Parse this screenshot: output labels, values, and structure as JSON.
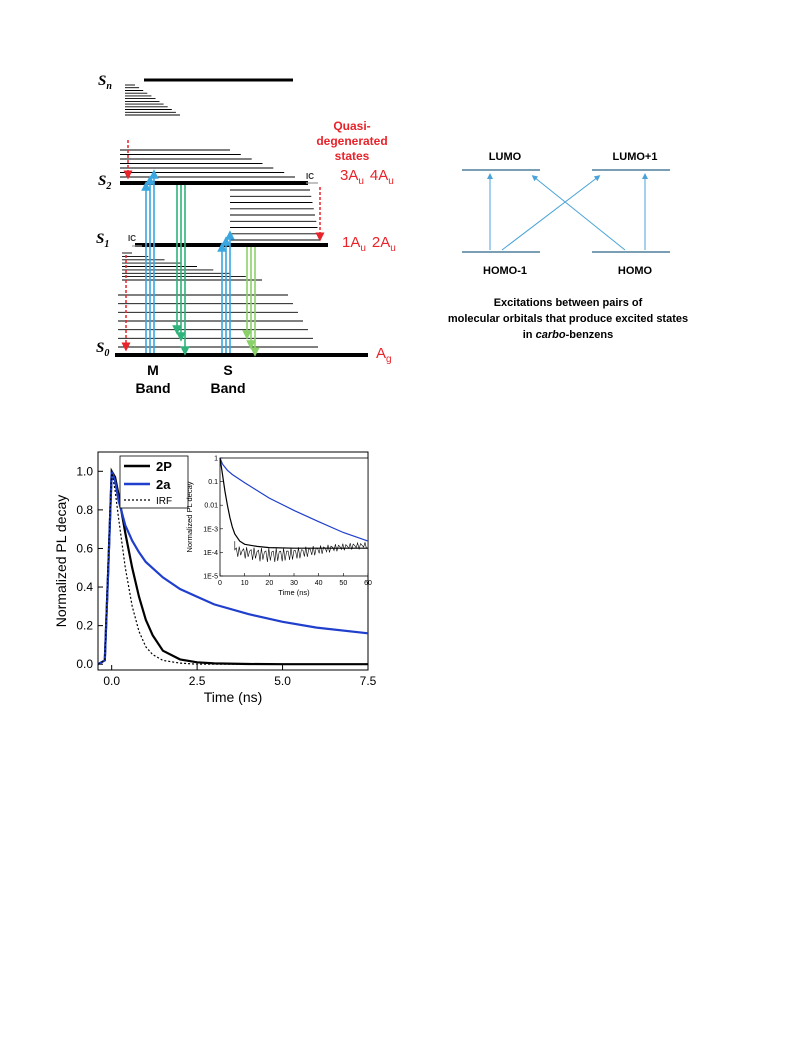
{
  "jablonski": {
    "levels": {
      "sn": "S",
      "sn_sub": "n",
      "s2": "S",
      "s2_sub": "2",
      "s1": "S",
      "s1_sub": "1",
      "s0": "S",
      "s0_sub": "0"
    },
    "quasi_label": [
      "Quasi-",
      "degenerated",
      "states"
    ],
    "s2_states": {
      "a": "3A",
      "a_sub": "u",
      "b": "4A",
      "b_sub": "u"
    },
    "s1_states": {
      "a": "1A",
      "a_sub": "u",
      "b": "2A",
      "b_sub": "u"
    },
    "s0_state": {
      "a": "A",
      "a_sub": "g"
    },
    "ic_label": "IC",
    "bands": {
      "m_top": "M",
      "m_bottom": "Band",
      "s_top": "S",
      "s_bottom": "Band"
    },
    "colors": {
      "red": "#e8232a",
      "blue": "#3aa7e0",
      "green": "#2fb37a",
      "lightgreen": "#8ad16a"
    }
  },
  "orbitals": {
    "lumo": "LUMO",
    "lumo1": "LUMO+1",
    "homo1": "HOMO-1",
    "homo": "HOMO",
    "caption_line1": "Excitations between pairs of",
    "caption_line2": "molecular orbitals that produce excited states",
    "caption_line3_pre": "in ",
    "caption_line3_italic": "carbo",
    "caption_line3_post": "-benzens",
    "colors": {
      "level": "#4f7f9a",
      "arrow": "#4aa3d8"
    }
  },
  "chart_data": [
    {
      "type": "line",
      "xlabel": "Time (ns)",
      "ylabel": "Normalized PL decay",
      "xlim": [
        -0.4,
        7.5
      ],
      "ylim": [
        -0.03,
        1.1
      ],
      "xticks": [
        "0.0",
        "2.5",
        "5.0",
        "7.5"
      ],
      "yticks": [
        "0.0",
        "0.2",
        "0.4",
        "0.6",
        "0.8",
        "1.0"
      ],
      "legend_position": "top-left",
      "series": [
        {
          "name": "2P",
          "color": "#000000",
          "x": [
            -0.4,
            -0.2,
            -0.1,
            0.0,
            0.1,
            0.2,
            0.4,
            0.6,
            0.8,
            1.0,
            1.2,
            1.5,
            2.0,
            2.5,
            3.0,
            4.0,
            5.0,
            7.5
          ],
          "y": [
            0.0,
            0.02,
            0.5,
            1.0,
            0.97,
            0.88,
            0.68,
            0.5,
            0.35,
            0.23,
            0.15,
            0.07,
            0.025,
            0.01,
            0.004,
            0.001,
            0.0,
            0.0
          ]
        },
        {
          "name": "2a",
          "color": "#1f3fcc",
          "x": [
            -0.4,
            -0.2,
            -0.1,
            0.0,
            0.1,
            0.2,
            0.4,
            0.6,
            0.8,
            1.0,
            1.5,
            2.0,
            2.5,
            3.0,
            4.0,
            5.0,
            6.0,
            7.5
          ],
          "y": [
            0.0,
            0.02,
            0.5,
            1.0,
            0.95,
            0.85,
            0.72,
            0.64,
            0.58,
            0.53,
            0.45,
            0.39,
            0.35,
            0.31,
            0.26,
            0.22,
            0.19,
            0.16
          ]
        },
        {
          "name": "IRF",
          "color": "#000000",
          "dashed": true,
          "x": [
            -0.4,
            -0.2,
            -0.1,
            0.0,
            0.1,
            0.2,
            0.4,
            0.6,
            0.8,
            1.0,
            1.2,
            1.5,
            2.0,
            2.5,
            7.5
          ],
          "y": [
            0.0,
            0.02,
            0.55,
            1.0,
            0.9,
            0.76,
            0.5,
            0.3,
            0.17,
            0.09,
            0.05,
            0.02,
            0.006,
            0.0,
            0.0
          ]
        }
      ]
    },
    {
      "type": "line",
      "xlabel": "Time (ns)",
      "ylabel": "Normalized PL decay",
      "xlim": [
        0,
        60
      ],
      "ylim_log": [
        1e-05,
        1
      ],
      "y_scale": "log",
      "xticks": [
        "0",
        "10",
        "20",
        "30",
        "40",
        "50",
        "60"
      ],
      "yticks": [
        "1",
        "0.1",
        "0.01",
        "1E-3",
        "1E-4",
        "1E-5"
      ],
      "series": [
        {
          "name": "2a",
          "color": "#1f3fcc",
          "x": [
            0,
            1,
            3,
            5,
            10,
            20,
            30,
            40,
            50,
            60
          ],
          "y": [
            1,
            0.55,
            0.3,
            0.2,
            0.09,
            0.02,
            0.006,
            0.002,
            0.0007,
            0.0003
          ]
        },
        {
          "name": "2P",
          "color": "#000000",
          "x": [
            0,
            1,
            2,
            3,
            4,
            5,
            6,
            8,
            10,
            15,
            20,
            30,
            40,
            50,
            60
          ],
          "y": [
            1,
            0.2,
            0.04,
            0.01,
            0.003,
            0.0012,
            0.0006,
            0.0003,
            0.00022,
            0.00018,
            0.00016,
            0.00015,
            0.00015,
            0.00015,
            0.00015
          ]
        }
      ]
    }
  ]
}
